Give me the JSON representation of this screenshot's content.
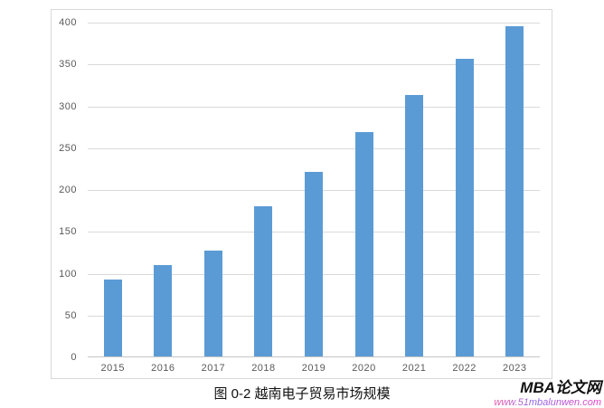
{
  "chart_data": {
    "type": "bar",
    "categories": [
      "2015",
      "2016",
      "2017",
      "2018",
      "2019",
      "2020",
      "2021",
      "2022",
      "2023"
    ],
    "values": [
      92,
      109,
      127,
      180,
      221,
      268,
      312,
      356,
      395
    ],
    "title": "",
    "xlabel": "",
    "ylabel": "",
    "ylim": [
      0,
      400
    ],
    "ytick_step": 50,
    "grid": true,
    "legend": "none",
    "bar_color": "#5b9bd5",
    "gridline_color": "#d9d9d9",
    "axis_line_color": "#c6c6c6",
    "tick_label_color": "#595959"
  },
  "caption": "图 0-2 越南电子贸易市场规模",
  "watermark": {
    "site_name": "MBA论文网",
    "site_url": "www.51mbalunwen.com"
  }
}
